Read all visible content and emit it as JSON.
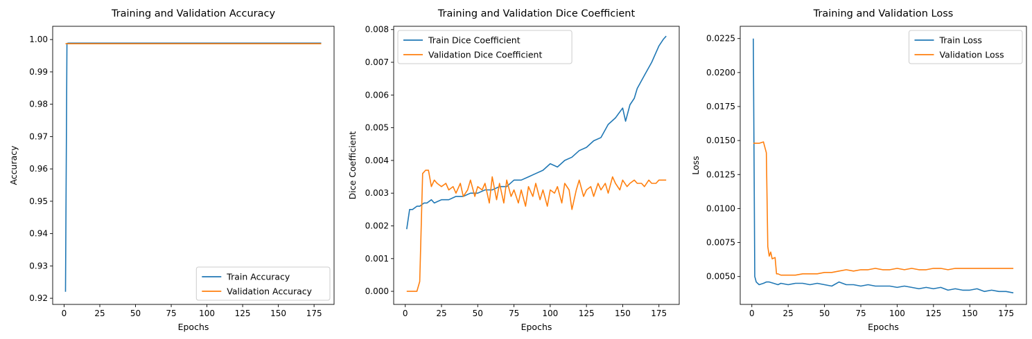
{
  "colors": {
    "train": "#1f77b4",
    "validation": "#ff7f0e"
  },
  "chart_data": [
    {
      "type": "line",
      "title": "Training and Validation Accuracy",
      "xlabel": "Epochs",
      "ylabel": "Accuracy",
      "xlim": [
        -8,
        189
      ],
      "ylim": [
        0.9181,
        1.0041
      ],
      "xticks": [
        0,
        25,
        50,
        75,
        100,
        125,
        150,
        175
      ],
      "yticks": [
        0.92,
        0.93,
        0.94,
        0.95,
        0.96,
        0.97,
        0.98,
        0.99,
        1.0
      ],
      "ytick_labels": [
        "0.92",
        "0.93",
        "0.94",
        "0.95",
        "0.96",
        "0.97",
        "0.98",
        "0.99",
        "1.00"
      ],
      "grid": false,
      "legend_position": "lower-right",
      "series": [
        {
          "name": "Train Accuracy",
          "color_key": "train",
          "x": [
            1,
            2,
            3,
            10,
            25,
            50,
            75,
            100,
            125,
            150,
            175,
            180
          ],
          "y": [
            0.922,
            0.9988,
            0.9989,
            0.9989,
            0.9989,
            0.9989,
            0.9989,
            0.9989,
            0.9989,
            0.9989,
            0.9989,
            0.9989
          ]
        },
        {
          "name": "Validation Accuracy",
          "color_key": "validation",
          "x": [
            1,
            25,
            50,
            75,
            100,
            125,
            150,
            175,
            180
          ],
          "y": [
            0.9987,
            0.9987,
            0.9987,
            0.9987,
            0.9987,
            0.9987,
            0.9987,
            0.9987,
            0.9987
          ]
        }
      ]
    },
    {
      "type": "line",
      "title": "Training and Validation Dice Coefficient",
      "xlabel": "Epochs",
      "ylabel": "Dice Coefficient",
      "xlim": [
        -8,
        189
      ],
      "ylim": [
        -0.0004,
        0.0081
      ],
      "xticks": [
        0,
        25,
        50,
        75,
        100,
        125,
        150,
        175
      ],
      "yticks": [
        0,
        0.001,
        0.002,
        0.003,
        0.004,
        0.005,
        0.006,
        0.007,
        0.008
      ],
      "ytick_labels": [
        "0.000",
        "0.001",
        "0.002",
        "0.003",
        "0.004",
        "0.005",
        "0.006",
        "0.007",
        "0.008"
      ],
      "grid": false,
      "legend_position": "upper-left",
      "series": [
        {
          "name": "Train Dice Coefficient",
          "color_key": "train",
          "x": [
            1,
            3,
            5,
            8,
            10,
            13,
            15,
            18,
            20,
            25,
            30,
            35,
            40,
            45,
            50,
            55,
            60,
            65,
            70,
            75,
            80,
            85,
            90,
            95,
            100,
            105,
            110,
            115,
            120,
            125,
            130,
            135,
            140,
            145,
            150,
            152,
            155,
            158,
            160,
            165,
            170,
            175,
            178,
            180
          ],
          "y": [
            0.0019,
            0.0025,
            0.0025,
            0.0026,
            0.0026,
            0.0027,
            0.0027,
            0.0028,
            0.0027,
            0.0028,
            0.0028,
            0.0029,
            0.0029,
            0.003,
            0.003,
            0.0031,
            0.0031,
            0.0032,
            0.0032,
            0.0034,
            0.0034,
            0.0035,
            0.0036,
            0.0037,
            0.0039,
            0.0038,
            0.004,
            0.0041,
            0.0043,
            0.0044,
            0.0046,
            0.0047,
            0.0051,
            0.0053,
            0.0056,
            0.0052,
            0.0057,
            0.0059,
            0.0062,
            0.0066,
            0.007,
            0.0075,
            0.0077,
            0.0078
          ]
        },
        {
          "name": "Validation Dice Coefficient",
          "color_key": "validation",
          "x": [
            1,
            5,
            8,
            10,
            12,
            14,
            16,
            18,
            20,
            22,
            25,
            28,
            30,
            33,
            35,
            38,
            40,
            43,
            45,
            48,
            50,
            53,
            55,
            58,
            60,
            63,
            65,
            68,
            70,
            73,
            75,
            78,
            80,
            83,
            85,
            88,
            90,
            93,
            95,
            98,
            100,
            103,
            105,
            108,
            110,
            113,
            115,
            118,
            120,
            123,
            125,
            128,
            130,
            133,
            135,
            138,
            140,
            143,
            145,
            148,
            150,
            153,
            155,
            158,
            160,
            163,
            165,
            168,
            170,
            173,
            175,
            178,
            180
          ],
          "y": [
            0.0,
            0.0,
            0.0,
            0.0003,
            0.0036,
            0.0037,
            0.0037,
            0.0032,
            0.0034,
            0.0033,
            0.0032,
            0.0033,
            0.0031,
            0.0032,
            0.003,
            0.0033,
            0.0029,
            0.0031,
            0.0034,
            0.0029,
            0.0032,
            0.0031,
            0.0033,
            0.0027,
            0.0035,
            0.0028,
            0.0033,
            0.0027,
            0.0034,
            0.0029,
            0.0031,
            0.0027,
            0.0031,
            0.0026,
            0.0032,
            0.0029,
            0.0033,
            0.0028,
            0.0031,
            0.0026,
            0.0031,
            0.003,
            0.0032,
            0.0027,
            0.0033,
            0.0031,
            0.0025,
            0.0031,
            0.0034,
            0.0029,
            0.0031,
            0.0032,
            0.0029,
            0.0033,
            0.0031,
            0.0033,
            0.003,
            0.0035,
            0.0033,
            0.0031,
            0.0034,
            0.0032,
            0.0033,
            0.0034,
            0.0033,
            0.0033,
            0.0032,
            0.0034,
            0.0033,
            0.0033,
            0.0034,
            0.0034,
            0.0034
          ]
        }
      ]
    },
    {
      "type": "line",
      "title": "Training and Validation Loss",
      "xlabel": "Epochs",
      "ylabel": "Loss",
      "xlim": [
        -8,
        189
      ],
      "ylim": [
        0.00295,
        0.0234
      ],
      "xticks": [
        0,
        25,
        50,
        75,
        100,
        125,
        150,
        175
      ],
      "yticks": [
        0.005,
        0.0075,
        0.01,
        0.0125,
        0.015,
        0.0175,
        0.02,
        0.0225
      ],
      "ytick_labels": [
        "0.0050",
        "0.0075",
        "0.0100",
        "0.0125",
        "0.0150",
        "0.0175",
        "0.0200",
        "0.0225"
      ],
      "grid": false,
      "legend_position": "upper-right",
      "series": [
        {
          "name": "Train Loss",
          "color_key": "train",
          "x": [
            1,
            2,
            3,
            5,
            8,
            10,
            12,
            15,
            18,
            20,
            25,
            30,
            35,
            40,
            45,
            50,
            55,
            60,
            65,
            70,
            75,
            80,
            85,
            90,
            95,
            100,
            105,
            110,
            115,
            120,
            125,
            130,
            135,
            140,
            145,
            150,
            155,
            160,
            165,
            170,
            175,
            180
          ],
          "y": [
            0.0225,
            0.005,
            0.0046,
            0.0044,
            0.0045,
            0.0046,
            0.0046,
            0.0045,
            0.0044,
            0.0045,
            0.0044,
            0.0045,
            0.0045,
            0.0044,
            0.0045,
            0.0044,
            0.0043,
            0.0046,
            0.0044,
            0.0044,
            0.0043,
            0.0044,
            0.0043,
            0.0043,
            0.0043,
            0.0042,
            0.0043,
            0.0042,
            0.0041,
            0.0042,
            0.0041,
            0.0042,
            0.004,
            0.0041,
            0.004,
            0.004,
            0.0041,
            0.0039,
            0.004,
            0.0039,
            0.0039,
            0.0038
          ]
        },
        {
          "name": "Validation Loss",
          "color_key": "validation",
          "x": [
            1,
            5,
            8,
            10,
            11,
            12,
            13,
            14,
            16,
            17,
            18,
            20,
            25,
            30,
            35,
            40,
            45,
            50,
            55,
            60,
            65,
            70,
            75,
            80,
            85,
            90,
            95,
            100,
            105,
            110,
            115,
            120,
            125,
            130,
            135,
            140,
            145,
            150,
            155,
            160,
            165,
            170,
            175,
            180
          ],
          "y": [
            0.0148,
            0.0148,
            0.0149,
            0.0141,
            0.0072,
            0.0065,
            0.0068,
            0.0063,
            0.0064,
            0.0052,
            0.0052,
            0.0051,
            0.0051,
            0.0051,
            0.0052,
            0.0052,
            0.0052,
            0.0053,
            0.0053,
            0.0054,
            0.0055,
            0.0054,
            0.0055,
            0.0055,
            0.0056,
            0.0055,
            0.0055,
            0.0056,
            0.0055,
            0.0056,
            0.0055,
            0.0055,
            0.0056,
            0.0056,
            0.0055,
            0.0056,
            0.0056,
            0.0056,
            0.0056,
            0.0056,
            0.0056,
            0.0056,
            0.0056,
            0.0056
          ]
        }
      ]
    }
  ]
}
